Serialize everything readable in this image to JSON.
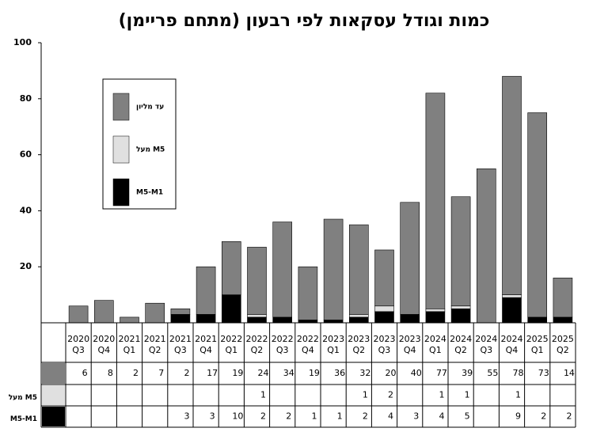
{
  "chart_data": {
    "type": "stacked-bar-table",
    "title": "כמות וגודל עסקאות לפי רבעון (מתחם פריימן)",
    "categories": [
      "2020 Q3",
      "2020 Q4",
      "2021 Q1",
      "2021 Q2",
      "2021 Q3",
      "2021 Q4",
      "2022 Q1",
      "2022 Q2",
      "2022 Q3",
      "2022 Q4",
      "2023 Q1",
      "2023 Q2",
      "2023 Q3",
      "2023 Q4",
      "2024 Q1",
      "2024 Q2",
      "2024 Q3",
      "2024 Q4",
      "2025 Q1",
      "2025 Q2"
    ],
    "series": [
      {
        "name": "עד מליון",
        "color": "#808080",
        "values": [
          6,
          8,
          2,
          7,
          2,
          17,
          19,
          24,
          34,
          19,
          36,
          32,
          20,
          40,
          77,
          39,
          55,
          78,
          73,
          14
        ]
      },
      {
        "name": "מעל M5",
        "color": "#e0e0e0",
        "values": [
          null,
          null,
          null,
          null,
          null,
          null,
          null,
          1,
          null,
          null,
          null,
          1,
          2,
          null,
          1,
          1,
          null,
          1,
          null,
          null
        ]
      },
      {
        "name": "M5-M1",
        "color": "#000000",
        "values": [
          null,
          null,
          null,
          null,
          3,
          3,
          10,
          2,
          2,
          1,
          1,
          2,
          4,
          3,
          4,
          5,
          null,
          9,
          2,
          2
        ]
      }
    ],
    "stack_order": [
      2,
      1,
      0
    ],
    "ylim": [
      0,
      100
    ],
    "yticks": [
      20,
      40,
      60,
      80,
      100
    ]
  }
}
